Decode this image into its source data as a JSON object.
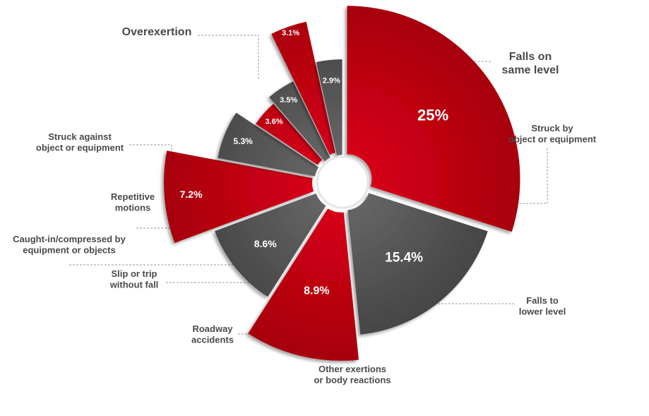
{
  "chart_data": {
    "type": "pie",
    "variant": "exploded-radial",
    "colors": {
      "red": "#c8000c",
      "gray": "#555555",
      "label": "#4a4a4a"
    },
    "slices": [
      {
        "category": [
          "Overexertion"
        ],
        "value": 25,
        "label": "25%",
        "color": "red"
      },
      {
        "category": [
          "Falls on",
          "same level"
        ],
        "value": 15.4,
        "label": "15.4%",
        "color": "gray"
      },
      {
        "category": [
          "Struck by",
          "object or equipment"
        ],
        "value": 8.9,
        "label": "8.9%",
        "color": "red"
      },
      {
        "category": [
          "Falls to",
          "lower level"
        ],
        "value": 8.6,
        "label": "8.6%",
        "color": "gray"
      },
      {
        "category": [
          "Other exertions",
          "or body reactions"
        ],
        "value": 7.2,
        "label": "7.2%",
        "color": "red"
      },
      {
        "category": [
          "Roadway",
          "accidents"
        ],
        "value": 5.3,
        "label": "5.3%",
        "color": "gray"
      },
      {
        "category": [
          "Slip or trip",
          "without fall"
        ],
        "value": 3.6,
        "label": "3.6%",
        "color": "red"
      },
      {
        "category": [
          "Caught-in/compressed by",
          "equipment or objects"
        ],
        "value": 3.5,
        "label": "3.5%",
        "color": "gray"
      },
      {
        "category": [
          "Repetitive",
          "motions"
        ],
        "value": 3.1,
        "label": "3.1%",
        "color": "red"
      },
      {
        "category": [
          "Struck against",
          "object or equipment"
        ],
        "value": 2.9,
        "label": "2.9%",
        "color": "gray"
      }
    ]
  }
}
